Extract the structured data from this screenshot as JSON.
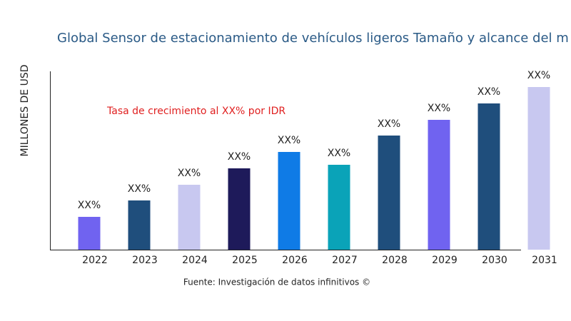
{
  "chart_data": {
    "type": "bar",
    "title": "Global Sensor de estacionamiento de vehículos ligeros Tamaño y alcance del m",
    "y_label": "MILLONES DE USD",
    "annotation": "Tasa de crecimiento al XX% por IDR",
    "source": "Fuente: Investigación de datos infinitivos ©",
    "categories": [
      "2022",
      "2023",
      "2024",
      "2025",
      "2026",
      "2027",
      "2028",
      "2029",
      "2030",
      "2031"
    ],
    "values": [
      46,
      69,
      91,
      114,
      137,
      119,
      160,
      182,
      205,
      228
    ],
    "value_labels": [
      "XX%",
      "XX%",
      "XX%",
      "XX%",
      "XX%",
      "XX%",
      "XX%",
      "XX%",
      "XX%",
      "XX%"
    ],
    "colors": [
      "#7063f0",
      "#1f4e7c",
      "#c8c8f0",
      "#1e1a5a",
      "#0f7be6",
      "#0aa3b8",
      "#1f4e7c",
      "#7063f0",
      "#1f4e7c",
      "#c8c8f0"
    ],
    "ylim": [
      0,
      250
    ]
  }
}
